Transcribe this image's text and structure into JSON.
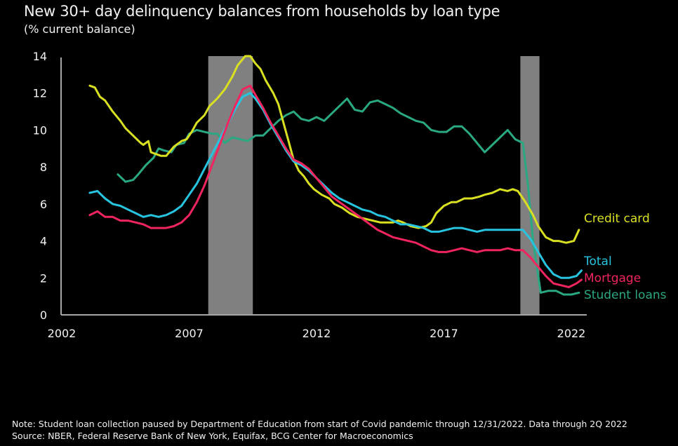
{
  "title": "New 30+ day delinquency balances from households by loan type",
  "subtitle": "(% current balance)",
  "notes": {
    "note": "Note: Student loan collection paused by Department of Education from start of Covid pandemic through 12/31/2022. Data through 2Q 2022",
    "source": "Source: NBER, Federal Reserve Bank of New York, Equifax, BCG Center for Macroeconomics"
  },
  "colors": {
    "background": "#000000",
    "axis": "#a6a6a6",
    "recession": "#808080",
    "credit_card": "#d9e021",
    "total": "#27c4e0",
    "mortgage": "#f0245e",
    "student_loans": "#2aa882"
  },
  "chart_data": {
    "type": "line",
    "title": "New 30+ day delinquency balances from households by loan type",
    "subtitle": "(% current balance)",
    "xlabel": "",
    "ylabel": "",
    "xlim": [
      2002,
      2022.6
    ],
    "ylim": [
      0,
      14
    ],
    "x_ticks": [
      2002,
      2007,
      2012,
      2017,
      2022
    ],
    "x_tick_labels": [
      "2002",
      "2007",
      "2012",
      "2017",
      "2022"
    ],
    "y_ticks": [
      0,
      2,
      4,
      6,
      8,
      10,
      12,
      14
    ],
    "y_tick_labels": [
      "0",
      "2",
      "4",
      "6",
      "8",
      "10",
      "12",
      "14"
    ],
    "grid": false,
    "legend": "inline-right",
    "recessions": [
      {
        "start": 2007.75,
        "end": 2009.5
      },
      {
        "start": 2020.0,
        "end": 2020.75
      }
    ],
    "series": [
      {
        "name": "Credit card",
        "key": "credit_card",
        "x": [
          2003.1,
          2003.3,
          2003.5,
          2003.7,
          2004.0,
          2004.3,
          2004.5,
          2004.8,
          2005.1,
          2005.2,
          2005.4,
          2005.5,
          2005.7,
          2005.9,
          2006.1,
          2006.4,
          2006.7,
          2006.9,
          2007.1,
          2007.3,
          2007.6,
          2007.8,
          2008.1,
          2008.4,
          2008.7,
          2008.9,
          2009.2,
          2009.4,
          2009.6,
          2009.8,
          2010.0,
          2010.3,
          2010.5,
          2010.7,
          2010.9,
          2011.1,
          2011.3,
          2011.5,
          2011.7,
          2011.9,
          2012.2,
          2012.5,
          2012.7,
          2013.0,
          2013.3,
          2013.6,
          2013.9,
          2014.2,
          2014.5,
          2014.7,
          2015.0,
          2015.2,
          2015.4,
          2015.7,
          2016.0,
          2016.3,
          2016.5,
          2016.7,
          2017.0,
          2017.3,
          2017.5,
          2017.8,
          2018.1,
          2018.4,
          2018.6,
          2018.9,
          2019.2,
          2019.5,
          2019.7,
          2019.9,
          2020.2,
          2020.5,
          2020.7,
          2021.0,
          2021.3,
          2021.5,
          2021.8,
          2022.1,
          2022.3
        ],
        "values": [
          12.4,
          12.3,
          11.8,
          11.6,
          11.0,
          10.5,
          10.1,
          9.7,
          9.3,
          9.2,
          9.4,
          8.8,
          8.7,
          8.6,
          8.6,
          9.1,
          9.4,
          9.5,
          9.9,
          10.4,
          10.8,
          11.3,
          11.7,
          12.2,
          12.9,
          13.5,
          14.0,
          14.0,
          13.6,
          13.3,
          12.7,
          12.0,
          11.4,
          10.4,
          9.4,
          8.4,
          7.8,
          7.5,
          7.1,
          6.8,
          6.5,
          6.3,
          6.0,
          5.8,
          5.5,
          5.3,
          5.2,
          5.1,
          5.0,
          5.0,
          5.0,
          5.1,
          5.0,
          4.8,
          4.7,
          4.8,
          5.0,
          5.5,
          5.9,
          6.1,
          6.1,
          6.3,
          6.3,
          6.4,
          6.5,
          6.6,
          6.8,
          6.7,
          6.8,
          6.7,
          6.1,
          5.4,
          4.8,
          4.2,
          4.0,
          4.0,
          3.9,
          4.0,
          4.6
        ]
      },
      {
        "name": "Total",
        "key": "total",
        "x": [
          2003.1,
          2003.4,
          2003.7,
          2004.0,
          2004.3,
          2004.6,
          2004.9,
          2005.2,
          2005.5,
          2005.8,
          2006.1,
          2006.4,
          2006.7,
          2007.0,
          2007.3,
          2007.6,
          2007.9,
          2008.2,
          2008.5,
          2008.8,
          2009.1,
          2009.4,
          2009.6,
          2009.9,
          2010.2,
          2010.5,
          2010.8,
          2011.1,
          2011.4,
          2011.7,
          2012.0,
          2012.3,
          2012.6,
          2012.9,
          2013.2,
          2013.5,
          2013.8,
          2014.1,
          2014.4,
          2014.7,
          2015.0,
          2015.3,
          2015.6,
          2015.9,
          2016.2,
          2016.5,
          2016.8,
          2017.1,
          2017.4,
          2017.7,
          2018.0,
          2018.3,
          2018.6,
          2018.9,
          2019.2,
          2019.5,
          2019.8,
          2020.1,
          2020.4,
          2020.7,
          2021.0,
          2021.3,
          2021.6,
          2021.9,
          2022.2,
          2022.4
        ],
        "values": [
          6.6,
          6.7,
          6.3,
          6.0,
          5.9,
          5.7,
          5.5,
          5.3,
          5.4,
          5.3,
          5.4,
          5.6,
          5.9,
          6.5,
          7.1,
          7.9,
          8.7,
          9.5,
          10.3,
          11.1,
          11.8,
          12.0,
          11.7,
          11.1,
          10.3,
          9.6,
          8.9,
          8.3,
          8.1,
          7.8,
          7.4,
          7.0,
          6.6,
          6.3,
          6.1,
          5.9,
          5.7,
          5.6,
          5.4,
          5.3,
          5.1,
          4.9,
          4.9,
          4.8,
          4.7,
          4.5,
          4.5,
          4.6,
          4.7,
          4.7,
          4.6,
          4.5,
          4.6,
          4.6,
          4.6,
          4.6,
          4.6,
          4.6,
          4.1,
          3.4,
          2.7,
          2.2,
          2.0,
          2.0,
          2.1,
          2.4
        ]
      },
      {
        "name": "Mortgage",
        "key": "mortgage",
        "x": [
          2003.1,
          2003.4,
          2003.7,
          2004.0,
          2004.3,
          2004.6,
          2004.9,
          2005.2,
          2005.5,
          2005.8,
          2006.1,
          2006.4,
          2006.7,
          2007.0,
          2007.3,
          2007.6,
          2007.9,
          2008.2,
          2008.5,
          2008.8,
          2009.1,
          2009.4,
          2009.6,
          2009.9,
          2010.2,
          2010.5,
          2010.8,
          2011.1,
          2011.4,
          2011.7,
          2012.0,
          2012.3,
          2012.6,
          2012.9,
          2013.2,
          2013.5,
          2013.8,
          2014.1,
          2014.4,
          2014.7,
          2015.0,
          2015.3,
          2015.6,
          2015.9,
          2016.2,
          2016.5,
          2016.8,
          2017.1,
          2017.4,
          2017.7,
          2018.0,
          2018.3,
          2018.6,
          2018.9,
          2019.2,
          2019.5,
          2019.8,
          2020.1,
          2020.4,
          2020.7,
          2021.0,
          2021.3,
          2021.6,
          2021.9,
          2022.2,
          2022.4
        ],
        "values": [
          5.4,
          5.6,
          5.3,
          5.3,
          5.1,
          5.1,
          5.0,
          4.9,
          4.7,
          4.7,
          4.7,
          4.8,
          5.0,
          5.4,
          6.1,
          7.0,
          8.1,
          9.2,
          10.3,
          11.3,
          12.2,
          12.4,
          11.9,
          11.2,
          10.4,
          9.7,
          9.0,
          8.4,
          8.2,
          7.9,
          7.4,
          6.9,
          6.4,
          6.1,
          5.8,
          5.5,
          5.2,
          4.9,
          4.6,
          4.4,
          4.2,
          4.1,
          4.0,
          3.9,
          3.7,
          3.5,
          3.4,
          3.4,
          3.5,
          3.6,
          3.5,
          3.4,
          3.5,
          3.5,
          3.5,
          3.6,
          3.5,
          3.5,
          3.1,
          2.6,
          2.1,
          1.7,
          1.6,
          1.5,
          1.7,
          1.9
        ]
      },
      {
        "name": "Student loans",
        "key": "student_loans",
        "x": [
          2004.2,
          2004.5,
          2004.8,
          2005.0,
          2005.3,
          2005.6,
          2005.8,
          2006.0,
          2006.3,
          2006.5,
          2006.8,
          2007.0,
          2007.3,
          2007.6,
          2007.9,
          2008.1,
          2008.4,
          2008.7,
          2009.0,
          2009.3,
          2009.6,
          2009.9,
          2010.2,
          2010.5,
          2010.8,
          2011.1,
          2011.4,
          2011.7,
          2012.0,
          2012.3,
          2012.6,
          2012.9,
          2013.2,
          2013.5,
          2013.8,
          2014.1,
          2014.4,
          2014.7,
          2015.0,
          2015.3,
          2015.6,
          2015.9,
          2016.2,
          2016.5,
          2016.8,
          2017.1,
          2017.4,
          2017.7,
          2018.0,
          2018.3,
          2018.6,
          2018.9,
          2019.2,
          2019.5,
          2019.8,
          2020.1,
          2020.3,
          2020.5,
          2020.8,
          2021.1,
          2021.4,
          2021.7,
          2022.0,
          2022.3
        ],
        "values": [
          7.6,
          7.2,
          7.3,
          7.6,
          8.1,
          8.5,
          9.0,
          8.9,
          8.8,
          9.2,
          9.3,
          9.8,
          10.0,
          9.9,
          9.8,
          9.8,
          9.3,
          9.6,
          9.5,
          9.4,
          9.7,
          9.7,
          10.1,
          10.5,
          10.8,
          11.0,
          10.6,
          10.5,
          10.7,
          10.5,
          10.9,
          11.3,
          11.7,
          11.1,
          11.0,
          11.5,
          11.6,
          11.4,
          11.2,
          10.9,
          10.7,
          10.5,
          10.4,
          10.0,
          9.9,
          9.9,
          10.2,
          10.2,
          9.8,
          9.3,
          8.8,
          9.2,
          9.6,
          10.0,
          9.5,
          9.3,
          7.0,
          4.0,
          1.2,
          1.3,
          1.3,
          1.1,
          1.1,
          1.2
        ]
      }
    ]
  }
}
